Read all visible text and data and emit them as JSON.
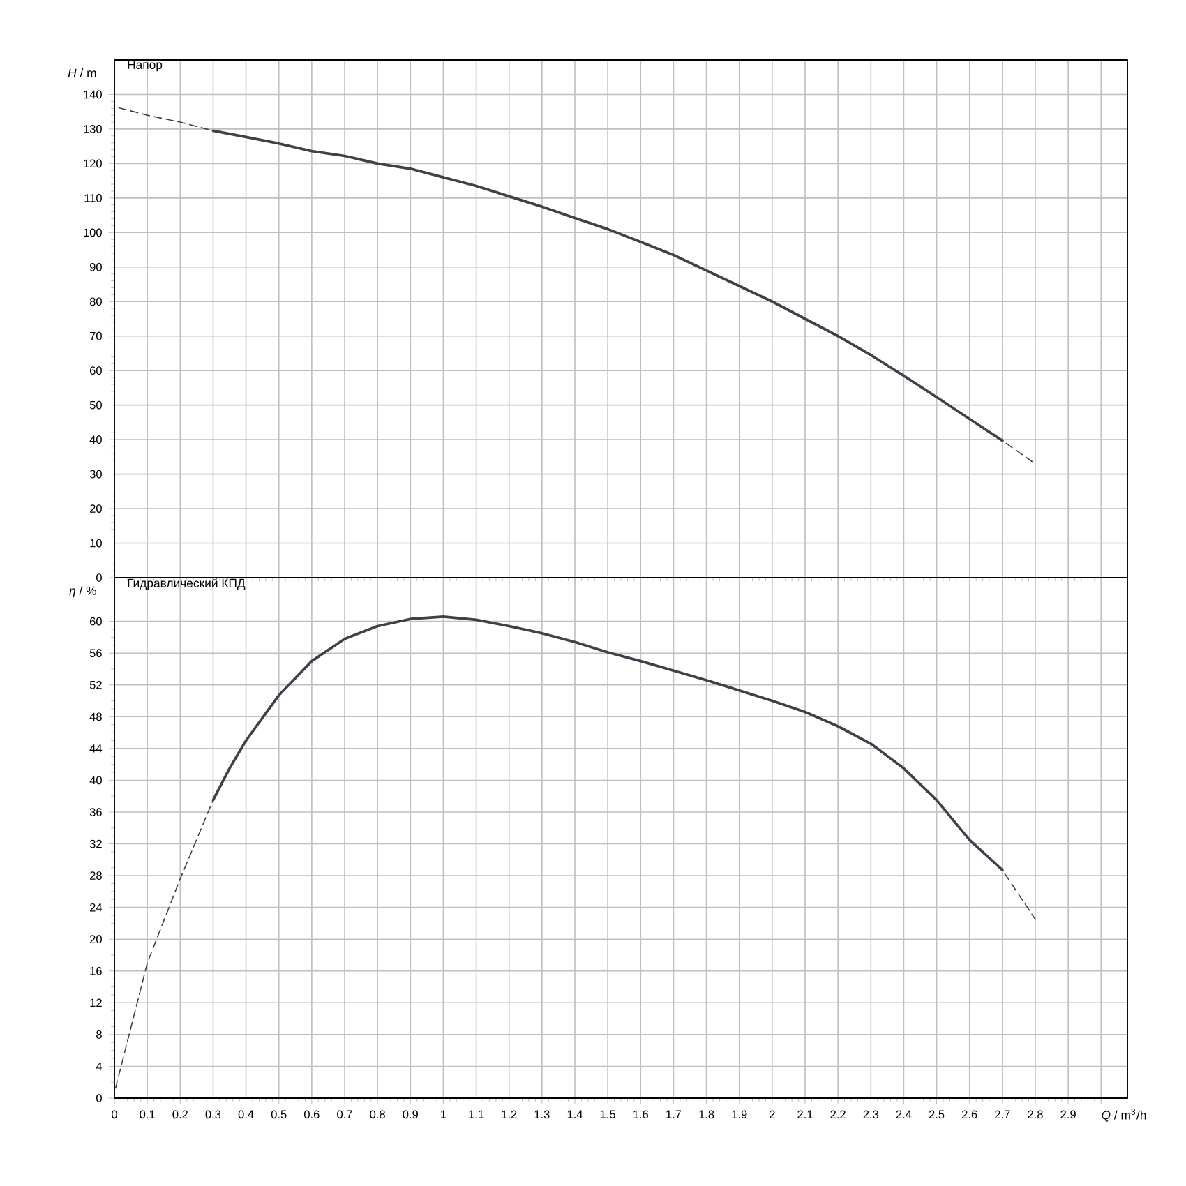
{
  "chart_data": [
    {
      "type": "line",
      "title": "Напор",
      "ylabel": "*H* / m",
      "xlim": [
        0,
        3.08
      ],
      "ylim": [
        0,
        150
      ],
      "tick_labels": "y",
      "grid": true,
      "xticks": [
        0,
        0.1,
        0.2,
        0.3,
        0.4,
        0.5,
        0.6,
        0.7,
        0.8,
        0.9,
        1,
        1.1,
        1.2,
        1.3,
        1.4,
        1.5,
        1.6,
        1.7,
        1.8,
        1.9,
        2,
        2.1,
        2.2,
        2.3,
        2.4,
        2.5,
        2.6,
        2.7,
        2.8,
        2.9,
        {
          "value": 3,
          "label": null
        }
      ],
      "yticks": [
        0,
        10,
        20,
        30,
        40,
        50,
        60,
        70,
        80,
        90,
        100,
        110,
        120,
        130,
        140
      ],
      "series": [
        {
          "color": "#3c4249",
          "line_style": "dashed",
          "x": [
            0,
            0.1,
            0.2,
            0.3
          ],
          "values": [
            136.5,
            134,
            132,
            129.5
          ]
        },
        {
          "color": "#3c4249",
          "line_style": "solid",
          "x": [
            0.3,
            0.4,
            0.5,
            0.6,
            0.7,
            0.8,
            0.9,
            1.0,
            1.1,
            1.2,
            1.3,
            1.4,
            1.5,
            1.6,
            1.7,
            1.8,
            1.9,
            2.0,
            2.1,
            2.2,
            2.3,
            2.4,
            2.5,
            2.6,
            2.7
          ],
          "values": [
            129.5,
            127.7,
            125.8,
            123.6,
            122.2,
            120,
            118.5,
            116,
            113.5,
            110.5,
            107.5,
            104.2,
            101,
            97.3,
            93.5,
            89,
            84.5,
            80,
            75,
            70,
            64.5,
            58.5,
            52.3,
            46,
            39.7
          ]
        },
        {
          "color": "#3c4249",
          "line_style": "dashed",
          "x": [
            2.7,
            2.8
          ],
          "values": [
            39.7,
            33
          ]
        }
      ]
    },
    {
      "type": "line",
      "title": "Гидравлический КПД",
      "xlabel": "*Q* / m$^{3}$/h",
      "ylabel": "*η* / %",
      "xlim": [
        0,
        3.08
      ],
      "ylim": [
        0,
        65.5
      ],
      "grid": true,
      "xticks": [
        0,
        0.1,
        0.2,
        0.3,
        0.4,
        0.5,
        0.6,
        0.7,
        0.8,
        0.9,
        1,
        1.1,
        1.2,
        1.3,
        1.4,
        1.5,
        1.6,
        1.7,
        1.8,
        1.9,
        2,
        2.1,
        2.2,
        2.3,
        2.4,
        2.5,
        2.6,
        2.7,
        2.8,
        2.9,
        {
          "value": 3,
          "label": null
        }
      ],
      "yticks": [
        0,
        4,
        8,
        12,
        16,
        20,
        24,
        28,
        32,
        36,
        40,
        44,
        48,
        52,
        56,
        60
      ],
      "series": [
        {
          "color": "#3c4249",
          "line_style": "dashed",
          "x": [
            0,
            0.1,
            0.2,
            0.3
          ],
          "values": [
            0.7,
            17,
            27.6,
            37.5
          ]
        },
        {
          "color": "#3c4249",
          "line_style": "solid",
          "x": [
            0.3,
            0.35,
            0.4,
            0.5,
            0.6,
            0.7,
            0.8,
            0.9,
            1.0,
            1.1,
            1.2,
            1.3,
            1.4,
            1.5,
            1.6,
            1.7,
            1.8,
            1.9,
            2.0,
            2.1,
            2.2,
            2.3,
            2.4,
            2.5,
            2.6,
            2.7
          ],
          "values": [
            37.5,
            41.5,
            45,
            50.7,
            55,
            57.8,
            59.4,
            60.3,
            60.6,
            60.2,
            59.4,
            58.5,
            57.4,
            56.1,
            55,
            53.8,
            52.6,
            51.3,
            50,
            48.6,
            46.8,
            44.6,
            41.5,
            37.5,
            32.5,
            28.7
          ]
        },
        {
          "color": "#3c4249",
          "line_style": "dashed",
          "x": [
            2.7,
            2.8
          ],
          "values": [
            28.7,
            22.5
          ]
        }
      ]
    }
  ]
}
